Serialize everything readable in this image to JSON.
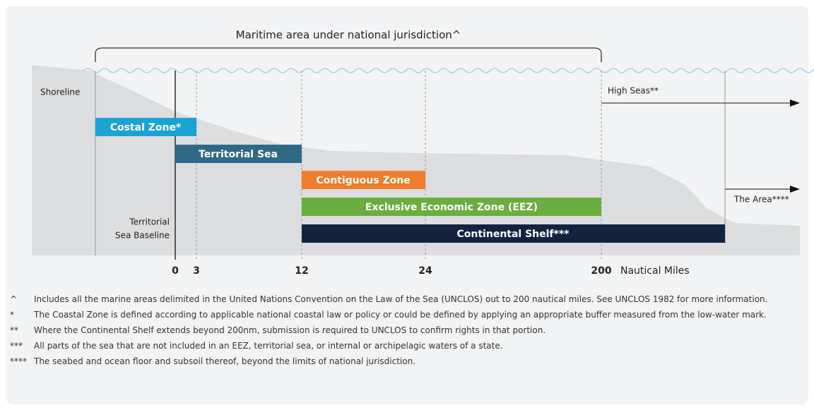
{
  "title": "Maritime area under national jurisdiction^",
  "labels": {
    "shoreline": "Shoreline",
    "high_seas": "High Seas**",
    "the_area": "The Area****",
    "baseline": [
      "Territorial",
      "Sea Baseline"
    ]
  },
  "zones": [
    {
      "label": "Costal Zone*"
    },
    {
      "label": "Territorial Sea"
    },
    {
      "label": "Contiguous Zone"
    },
    {
      "label": "Exclusive Economic Zone (EEZ)"
    },
    {
      "label": "Continental Shelf***"
    }
  ],
  "ticks": [
    "0",
    "3",
    "12",
    "24",
    "200"
  ],
  "axis_label": "Nautical Miles",
  "footnotes": [
    {
      "marker": "^",
      "text": "Includes all the marine areas delimited in the United Nations Convention on the Law of the Sea (UNCLOS) out to 200 nautical miles. See UNCLOS 1982 for more information."
    },
    {
      "marker": "*",
      "text": "The Coastal Zone is defined according to applicable national coastal law or policy or could be defined by applying an appropriate buffer measured from the low-water mark."
    },
    {
      "marker": "**",
      "text": "Where the Continental Shelf extends beyond 200nm, submission is required to UNCLOS to confirm rights in that portion."
    },
    {
      "marker": "***",
      "text": "All parts of the sea that are not included in an EEZ, territorial sea, or internal or archipelagic waters of a state."
    },
    {
      "marker": "****",
      "text": "The seabed and ocean floor and subsoil thereof, beyond the limits of national jurisdiction."
    }
  ]
}
